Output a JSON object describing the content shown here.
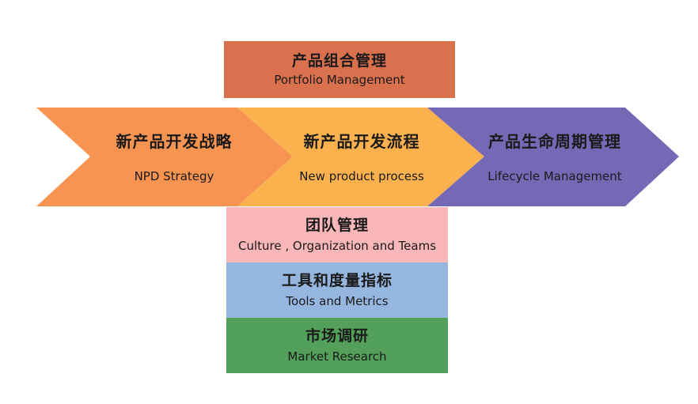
{
  "diagram": {
    "portfolio": {
      "zh": "产品组合管理",
      "en": "Portfolio Management",
      "color": "#D9704E"
    },
    "arrows": [
      {
        "zh": "新产品开发战略",
        "en": "NPD Strategy",
        "color": "#F79452"
      },
      {
        "zh": "新产品开发流程",
        "en": "New product process",
        "color": "#FBB14D"
      },
      {
        "zh": "产品生命周期管理",
        "en": "Lifecycle Management",
        "color": "#7569B5"
      }
    ],
    "foundations": [
      {
        "zh": "团队管理",
        "en": "Culture , Organization and Teams",
        "color": "#F9B7BA"
      },
      {
        "zh": "工具和度量指标",
        "en": "Tools and Metrics",
        "color": "#95B7DF"
      },
      {
        "zh": "市场调研",
        "en": "Market Research",
        "color": "#53A05A"
      }
    ]
  }
}
